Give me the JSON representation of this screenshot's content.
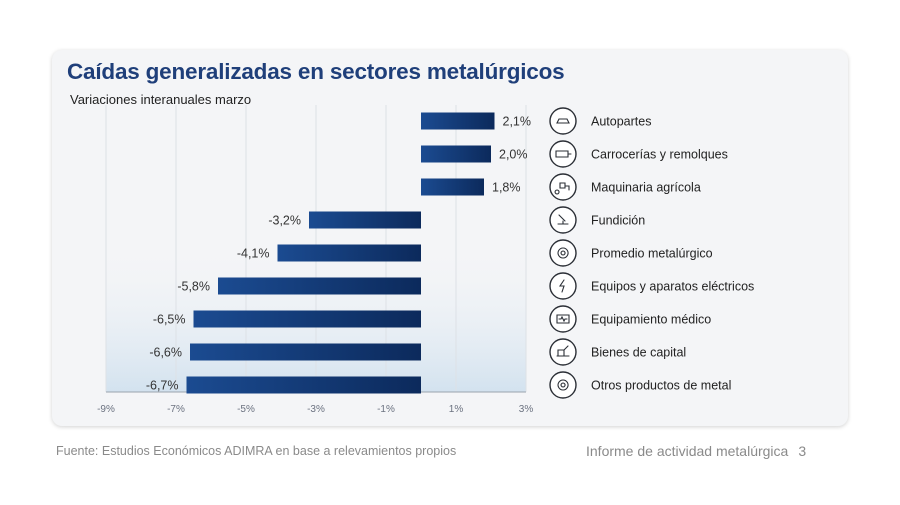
{
  "chart_data": {
    "type": "bar",
    "orientation": "horizontal",
    "title": "Caídas generalizadas en sectores metalúrgicos",
    "subtitle": "Variaciones interanuales marzo",
    "categories": [
      "Autopartes",
      "Carrocerías y remolques",
      "Maquinaria agrícola",
      "Fundición",
      "Promedio metalúrgico",
      "Equipos y aparatos eléctricos",
      "Equipamiento médico",
      "Bienes de capital",
      "Otros productos de metal"
    ],
    "values": [
      2.1,
      2.0,
      1.8,
      -3.2,
      -4.1,
      -5.8,
      -6.5,
      -6.6,
      -6.7
    ],
    "value_labels": [
      "2,1%",
      "2,0%",
      "1,8%",
      "-3,2%",
      "-4,1%",
      "-5,8%",
      "-6,5%",
      "-6,6%",
      "-6,7%"
    ],
    "icons": [
      "car-parts-icon",
      "trailer-icon",
      "tractor-icon",
      "foundry-icon",
      "gears-icon",
      "electrical-icon",
      "medical-equipment-icon",
      "machinery-icon",
      "gears-icon"
    ],
    "xlim": [
      -9,
      3
    ],
    "xticks": [
      -9,
      -7,
      -5,
      -3,
      -1,
      1,
      3
    ],
    "xtick_labels": [
      "-9%",
      "-7%",
      "-5%",
      "-3%",
      "-1%",
      "1%",
      "3%"
    ],
    "grid": true,
    "colors": {
      "bar_dark": "#0c2a5c",
      "bar_mid": "#1b4b91",
      "title": "#1f3f7a"
    }
  },
  "footer": {
    "source": "Fuente: Estudios Económicos ADIMRA en base a relevamientos propios",
    "report": "Informe de actividad metalúrgica",
    "page": "3"
  }
}
